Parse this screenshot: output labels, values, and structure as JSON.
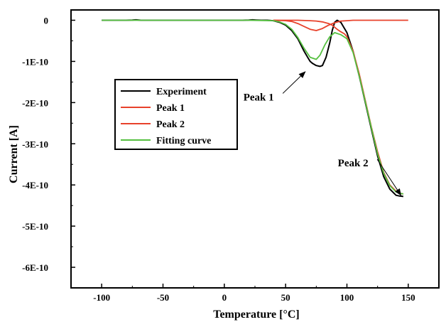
{
  "chart_data": {
    "type": "line",
    "title": "",
    "xlabel": "Temperature [°C]",
    "ylabel": "Current [A]",
    "xlim": [
      -125,
      175
    ],
    "ylim": [
      -6.5e-10,
      2.5e-11
    ],
    "x_ticks": [
      -100,
      -50,
      0,
      50,
      100,
      150
    ],
    "x_tick_labels": [
      "-100",
      "-50",
      "0",
      "50",
      "100",
      "150"
    ],
    "y_ticks": [
      0,
      -1e-10,
      -2e-10,
      -3e-10,
      -4e-10,
      -5e-10,
      -6e-10
    ],
    "y_tick_labels": [
      "0",
      "-1E-10",
      "-2E-10",
      "-3E-10",
      "-4E-10",
      "-5E-10",
      "-6E-10"
    ],
    "grid": false,
    "legend_position": "center-left",
    "series": [
      {
        "name": "Experiment",
        "color": "#000000",
        "x": [
          -100,
          -90,
          -80,
          -75,
          -72,
          -68,
          -60,
          -50,
          -40,
          -30,
          -20,
          -10,
          0,
          10,
          15,
          20,
          23,
          26,
          30,
          35,
          40,
          45,
          50,
          55,
          60,
          65,
          68,
          70,
          72,
          75,
          78,
          80,
          83,
          86,
          88,
          90,
          92,
          95,
          100,
          105,
          110,
          115,
          120,
          125,
          130,
          135,
          140,
          143,
          146
        ],
        "y": [
          0,
          0,
          0,
          5e-13,
          1e-12,
          0,
          0,
          0,
          0,
          0,
          0,
          0,
          0,
          0,
          0,
          5e-13,
          1e-12,
          5e-13,
          0,
          0,
          -1e-12,
          -5e-12,
          -1.2e-11,
          -2.5e-11,
          -4.5e-11,
          -7.5e-11,
          -9e-11,
          -1e-10,
          -1.05e-10,
          -1.1e-10,
          -1.12e-10,
          -1.1e-10,
          -9e-11,
          -5.5e-11,
          -2.5e-11,
          -5e-12,
          0,
          -5e-12,
          -3e-11,
          -7.5e-11,
          -1.35e-10,
          -2e-10,
          -2.65e-10,
          -3.3e-10,
          -3.8e-10,
          -4.1e-10,
          -4.25e-10,
          -4.27e-10,
          -4.28e-10
        ]
      },
      {
        "name": "Peak 1",
        "color": "#e8412b",
        "x": [
          40,
          50,
          55,
          60,
          65,
          70,
          75,
          80,
          85,
          90,
          95,
          100,
          105,
          110,
          120,
          150
        ],
        "y": [
          0,
          -1e-12,
          -3e-12,
          -8e-12,
          -1.5e-11,
          -2.2e-11,
          -2.5e-11,
          -2e-11,
          -1.2e-11,
          -6e-12,
          -2e-12,
          -1e-12,
          0,
          0,
          0,
          0
        ]
      },
      {
        "name": "Peak 2",
        "color": "#e8412b",
        "x": [
          40,
          60,
          70,
          75,
          80,
          85,
          88,
          90,
          92,
          95,
          98,
          100,
          105,
          110,
          115,
          120,
          125,
          130,
          135,
          140,
          143,
          146
        ],
        "y": [
          0,
          0,
          -1e-12,
          -2e-12,
          -4e-12,
          -8e-12,
          -1.2e-11,
          -1.7e-11,
          -2.2e-11,
          -2.8e-11,
          -3.3e-11,
          -4e-11,
          -7.5e-11,
          -1.3e-10,
          -1.95e-10,
          -2.6e-10,
          -3.2e-10,
          -3.7e-10,
          -4e-10,
          -4.15e-10,
          -4.2e-10,
          -4.22e-10
        ]
      },
      {
        "name": "Fitting curve",
        "color": "#55c040",
        "x": [
          -100,
          -80,
          -60,
          -40,
          -20,
          0,
          20,
          40,
          45,
          50,
          55,
          60,
          65,
          70,
          75,
          78,
          82,
          86,
          90,
          95,
          100,
          105,
          110,
          115,
          120,
          125,
          130,
          135,
          140,
          143,
          146
        ],
        "y": [
          0,
          0,
          0,
          0,
          0,
          0,
          0,
          -1e-12,
          -4e-12,
          -1e-11,
          -2.2e-11,
          -4.2e-11,
          -6.8e-11,
          -9e-11,
          -9.5e-11,
          -8.5e-11,
          -6e-11,
          -4e-11,
          -3e-11,
          -3.5e-11,
          -4.5e-11,
          -7.8e-11,
          -1.35e-10,
          -1.98e-10,
          -2.62e-10,
          -3.25e-10,
          -3.72e-10,
          -4.02e-10,
          -4.17e-10,
          -4.2e-10,
          -4.22e-10
        ]
      }
    ],
    "annotations": [
      {
        "text": "Peak 1",
        "x": 28,
        "y": -1.95e-10,
        "arrow_to_x": 66,
        "arrow_to_y": -1.25e-10
      },
      {
        "text": "Peak 2",
        "x": 105,
        "y": -3.55e-10,
        "arrow_to_x": 144,
        "arrow_to_y": -4.25e-10
      }
    ]
  }
}
